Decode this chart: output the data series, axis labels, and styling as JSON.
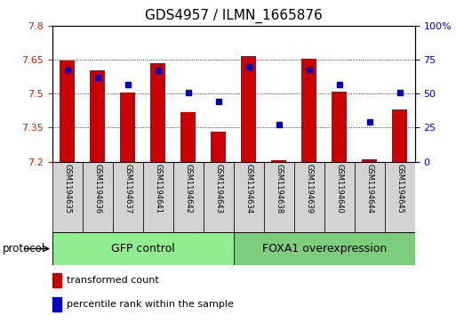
{
  "title": "GDS4957 / ILMN_1665876",
  "samples": [
    "GSM1194635",
    "GSM1194636",
    "GSM1194637",
    "GSM1194641",
    "GSM1194642",
    "GSM1194643",
    "GSM1194634",
    "GSM1194638",
    "GSM1194639",
    "GSM1194640",
    "GSM1194644",
    "GSM1194645"
  ],
  "red_values": [
    7.645,
    7.605,
    7.505,
    7.635,
    7.42,
    7.33,
    7.665,
    7.205,
    7.655,
    7.51,
    7.21,
    7.43
  ],
  "blue_values": [
    68,
    62,
    57,
    67,
    51,
    44,
    70,
    27,
    68,
    57,
    29,
    51
  ],
  "ylim_left": [
    7.2,
    7.8
  ],
  "ylim_right": [
    0,
    100
  ],
  "yticks_left": [
    7.2,
    7.35,
    7.5,
    7.65,
    7.8
  ],
  "yticks_right": [
    0,
    25,
    50,
    75,
    100
  ],
  "ytick_labels_right": [
    "0",
    "25",
    "50",
    "75",
    "100%"
  ],
  "bar_color": "#cc0000",
  "dot_color": "#0000cc",
  "bar_bottom": 7.2,
  "bar_width": 0.5,
  "group_info": [
    {
      "start": 0,
      "end": 5,
      "label": "GFP control",
      "color": "#90ee90"
    },
    {
      "start": 6,
      "end": 11,
      "label": "FOXA1 overexpression",
      "color": "#7ccd7c"
    }
  ],
  "tick_color_left": "#cc2200",
  "tick_color_right": "#0000cc",
  "title_fontsize": 11,
  "tick_fontsize": 8,
  "sample_fontsize": 6,
  "group_fontsize": 9,
  "legend_fontsize": 8,
  "sample_box_color": "#d3d3d3",
  "legend_items": [
    "transformed count",
    "percentile rank within the sample"
  ],
  "protocol_label": "protocol"
}
